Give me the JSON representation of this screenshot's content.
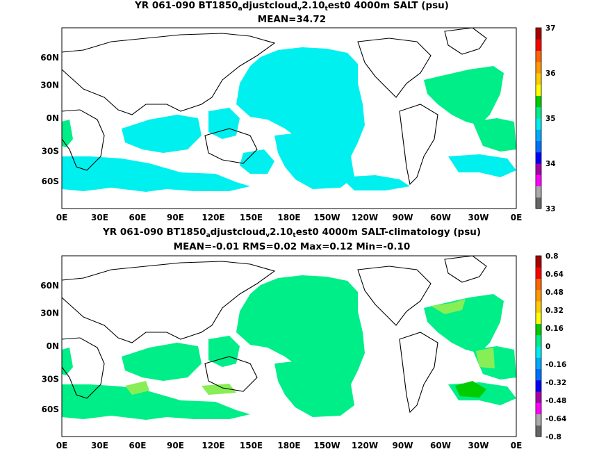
{
  "panels": [
    {
      "title_pre": "YR 061-090 BT1850",
      "title_sub1": "a",
      "title_mid1": "djustcloud",
      "title_sub2": "v",
      "title_mid2": "2.10",
      "title_sub3": "t",
      "title_post": "est0 4000m SALT (psu)",
      "subtitle": "MEAN=34.72",
      "colorbar_ticks": [
        "37",
        "36",
        "35",
        "34",
        "33"
      ]
    },
    {
      "title_pre": "YR 061-090 BT1850",
      "title_sub1": "a",
      "title_mid1": "djustcloud",
      "title_sub2": "v",
      "title_mid2": "2.10",
      "title_sub3": "t",
      "title_post": "est0 4000m SALT-climatology (psu)",
      "subtitle": "MEAN=-0.01   RMS=0.02   Max=0.12   Min=-0.10",
      "colorbar_ticks": [
        "0.8",
        "0.64",
        "0.48",
        "0.32",
        "0.16",
        "0",
        "-0.16",
        "-0.32",
        "-0.48",
        "-0.64",
        "-0.8"
      ]
    }
  ],
  "lon_labels": [
    "0E",
    "30E",
    "60E",
    "90E",
    "120E",
    "150E",
    "180E",
    "150W",
    "120W",
    "90W",
    "60W",
    "30W",
    "0E"
  ],
  "lat_labels": [
    "60N",
    "30N",
    "0N",
    "30S",
    "60S"
  ],
  "colors": {
    "salt_fill": "#00f0f0",
    "anomaly_fill": "#00ee88",
    "anomaly_positive": "#88ee55",
    "anomaly_strong": "#00cc00",
    "salt_atlantic": "#00ee88"
  },
  "colorbar_colors": [
    "#666666",
    "#aaaaaa",
    "#ff00ff",
    "#aa00aa",
    "#0000ff",
    "#0070ff",
    "#00aaff",
    "#00eeee",
    "#00ee88",
    "#00cc00",
    "#ffff00",
    "#ffcc00",
    "#ff9900",
    "#ff6600",
    "#ff0000",
    "#aa0000"
  ]
}
